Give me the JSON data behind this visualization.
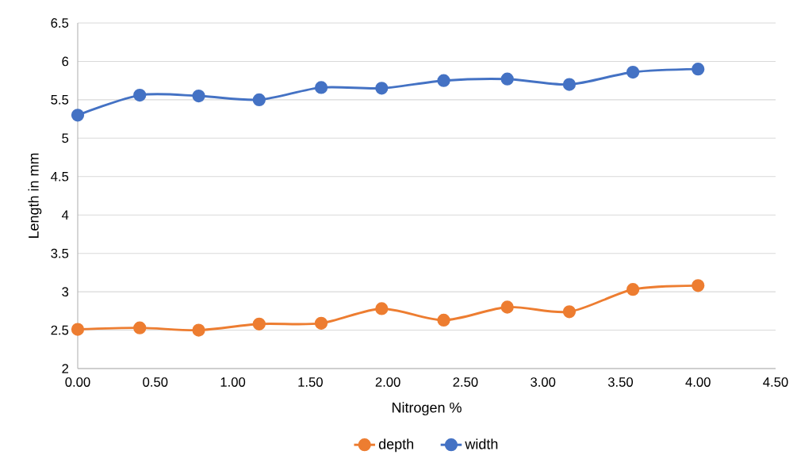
{
  "chart_data": {
    "type": "line",
    "xlabel": "Nitrogen %",
    "ylabel": "Length in mm",
    "x": [
      0,
      0.4,
      0.78,
      1.17,
      1.57,
      1.96,
      2.36,
      2.77,
      3.17,
      3.58,
      4.0
    ],
    "series": [
      {
        "name": "depth",
        "color": "#ed7d31",
        "values": [
          2.51,
          2.53,
          2.5,
          2.58,
          2.59,
          2.78,
          2.63,
          2.8,
          2.74,
          3.03,
          3.08
        ]
      },
      {
        "name": "width",
        "color": "#4472c4",
        "values": [
          5.3,
          5.56,
          5.55,
          5.5,
          5.66,
          5.65,
          5.75,
          5.77,
          5.7,
          5.86,
          5.9
        ]
      }
    ],
    "xlim": [
      0,
      4.5
    ],
    "xticks": [
      {
        "value": 0,
        "label": "0.00"
      },
      {
        "value": 0.5,
        "label": "0.50"
      },
      {
        "value": 1,
        "label": "1.00"
      },
      {
        "value": 1.5,
        "label": "1.50"
      },
      {
        "value": 2,
        "label": "2.00"
      },
      {
        "value": 2.5,
        "label": "2.50"
      },
      {
        "value": 3,
        "label": "3.00"
      },
      {
        "value": 3.5,
        "label": "3.50"
      },
      {
        "value": 4,
        "label": "4.00"
      },
      {
        "value": 4.5,
        "label": "4.50"
      }
    ],
    "ylim": [
      2,
      6.5
    ],
    "yticks": [
      2,
      2.5,
      3,
      3.5,
      4,
      4.5,
      5,
      5.5,
      6,
      6.5
    ],
    "grid": "y",
    "legend": "bottom",
    "marker": "circle",
    "line_style": "solid"
  }
}
